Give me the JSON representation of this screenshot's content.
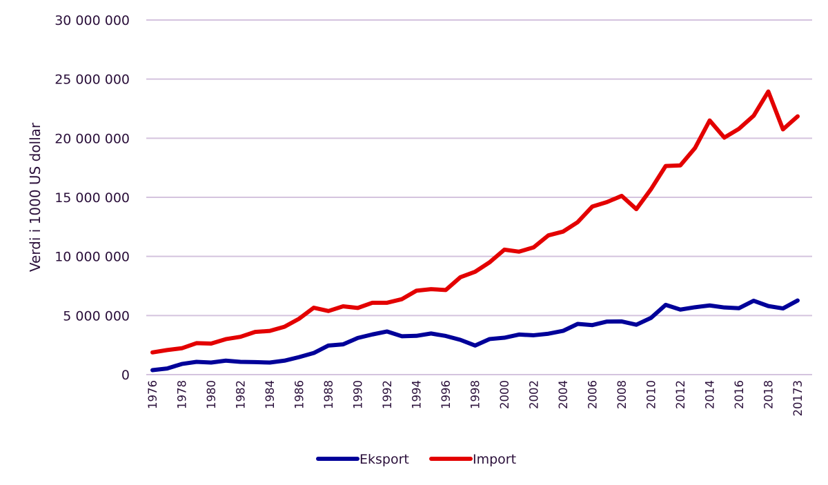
{
  "chart_data": {
    "type": "line",
    "title": "",
    "xlabel": "",
    "ylabel": "Verdi i 1000 US dollar",
    "ylim": [
      0,
      30000000
    ],
    "yticks": [
      0,
      5000000,
      10000000,
      15000000,
      20000000,
      25000000,
      30000000
    ],
    "ytick_labels": [
      "0",
      "5 000 000",
      "10 000 000",
      "15 000 000",
      "20 000 000",
      "25 000 000",
      "30 000 000"
    ],
    "grid": true,
    "legend_position": "bottom",
    "x_tick_labels": [
      "1976",
      "1978",
      "1980",
      "1982",
      "1984",
      "1986",
      "1988",
      "1990",
      "1992",
      "1994",
      "1996",
      "1998",
      "2000",
      "2002",
      "2004",
      "2006",
      "2008",
      "2010",
      "2012",
      "2014",
      "2016",
      "2018",
      "20173"
    ],
    "x_tick_every": 2,
    "point_count": 45,
    "series": [
      {
        "name": "Eksport",
        "color": "#000099",
        "values": [
          380000,
          520000,
          900000,
          1080000,
          1020000,
          1180000,
          1080000,
          1060000,
          1020000,
          1180000,
          1480000,
          1830000,
          2460000,
          2560000,
          3100000,
          3400000,
          3650000,
          3250000,
          3280000,
          3480000,
          3270000,
          2940000,
          2460000,
          3010000,
          3120000,
          3390000,
          3330000,
          3460000,
          3700000,
          4290000,
          4190000,
          4490000,
          4500000,
          4220000,
          4800000,
          5900000,
          5500000,
          5700000,
          5850000,
          5680000,
          5620000,
          6250000,
          5800000,
          5600000,
          6270000
        ]
      },
      {
        "name": "Import",
        "color": "#e30000",
        "values": [
          1880000,
          2080000,
          2230000,
          2660000,
          2630000,
          3000000,
          3200000,
          3610000,
          3700000,
          4050000,
          4730000,
          5660000,
          5380000,
          5780000,
          5640000,
          6080000,
          6080000,
          6380000,
          7100000,
          7230000,
          7160000,
          8240000,
          8700000,
          9510000,
          10570000,
          10400000,
          10770000,
          11780000,
          12100000,
          12900000,
          14220000,
          14600000,
          15120000,
          14000000,
          15690000,
          17650000,
          17700000,
          19170000,
          21500000,
          20050000,
          20800000,
          21900000,
          23950000,
          20750000,
          21850000
        ]
      }
    ]
  },
  "legend": {
    "items": [
      {
        "label": "Eksport",
        "color": "#000099"
      },
      {
        "label": "Import",
        "color": "#e30000"
      }
    ]
  }
}
